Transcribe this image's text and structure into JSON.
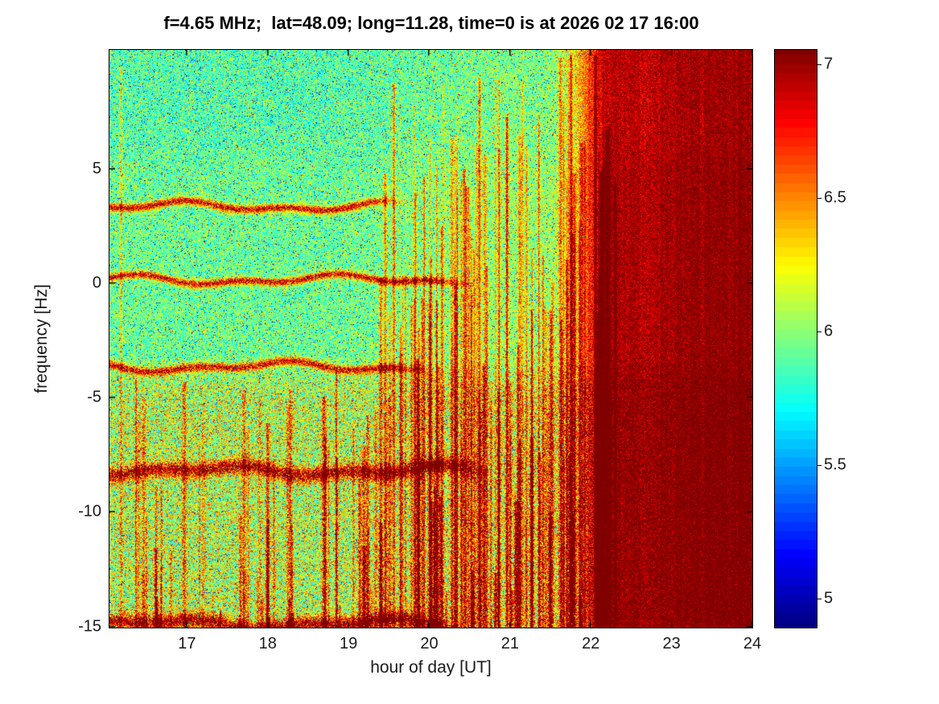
{
  "figure": {
    "title": "f=4.65 MHz;  lat=48.09; long=11.28, time=0 is at 2026 02 17 16:00"
  },
  "chart_data": {
    "type": "heatmap",
    "title": "f=4.65 MHz;  lat=48.09; long=11.28, time=0 is at 2026 02 17 16:00",
    "xlabel": "hour of day [UT]",
    "ylabel": "frequency [Hz]",
    "x_range": [
      16.04,
      24
    ],
    "y_range": [
      -15.05,
      10.2
    ],
    "x_ticks": [
      "17",
      "18",
      "19",
      "20",
      "21",
      "22",
      "23",
      "24"
    ],
    "x_tick_values": [
      17,
      18,
      19,
      20,
      21,
      22,
      23,
      24
    ],
    "y_ticks": [
      "5",
      "0",
      "-5",
      "-10",
      "-15"
    ],
    "y_tick_values": [
      5,
      0,
      -5,
      -10,
      -15
    ],
    "grid": false,
    "legend": null,
    "colormap": "jet",
    "colorbar": {
      "min": 4.892,
      "max": 7.054,
      "ticks": [
        "5",
        "5.5",
        "6",
        "6.5",
        "7"
      ],
      "tick_values": [
        5,
        5.5,
        6,
        6.5,
        7
      ],
      "position": "right",
      "levels": 64
    },
    "description": "Noisy spectrogram of signal power vs time and Doppler frequency. Cyan-green noise background (~5.9) above -3.5 Hz, yellow-orange noisier background (~6.1) below. Wavy dark-red horizontal spectral lines near +3.4, +0.1, -3.6, -8.2 and -14.9 Hz fade out between 19.5 and 20.6 UT. Red vertical interference streaks increase after 19 UT; after ~22.3 UT the whole band saturates dark red (~7).",
    "features": {
      "noise_seed": 42,
      "background_level": 5.93,
      "lower_band_boost": 0.17,
      "lower_band_start_hz": -3.0,
      "upper_cool_start_hz": 4.5,
      "drift_gain": 0.1,
      "saturation_start_hour": 21.45,
      "saturation_full_hour": 22.3,
      "saturation_gain": 0.95,
      "far_right_extra": 0.1,
      "spectral_lines": [
        {
          "frequency_hz": 3.35,
          "visible_until_hour": 19.6,
          "level": 6.9,
          "width_hz": 0.17
        },
        {
          "frequency_hz": 0.15,
          "visible_until_hour": 20.4,
          "level": 6.9,
          "width_hz": 0.16
        },
        {
          "frequency_hz": -3.65,
          "visible_until_hour": 19.9,
          "level": 6.85,
          "width_hz": 0.18
        },
        {
          "frequency_hz": -8.2,
          "visible_until_hour": 20.6,
          "level": 6.85,
          "width_hz": 0.3
        },
        {
          "frequency_hz": -14.9,
          "visible_until_hour": 20.3,
          "level": 6.85,
          "width_hz": 0.3
        }
      ],
      "extra_streaks": [
        {
          "hour": 16.18,
          "top_hz": 9.5,
          "amp": 0.5
        },
        {
          "hour": 20.15,
          "top_hz": 2.5,
          "amp": 0.85
        },
        {
          "hour": 20.55,
          "top_hz": 1.5,
          "amp": 0.7
        },
        {
          "hour": 21.2,
          "top_hz": 6.0,
          "amp": 0.6
        },
        {
          "hour": 21.75,
          "top_hz": 10.0,
          "amp": 0.7
        },
        {
          "hour": 22.05,
          "top_hz": 10.0,
          "amp": 0.8
        }
      ],
      "random_streaks_lower": 95,
      "random_streaks_tall": 75
    }
  }
}
